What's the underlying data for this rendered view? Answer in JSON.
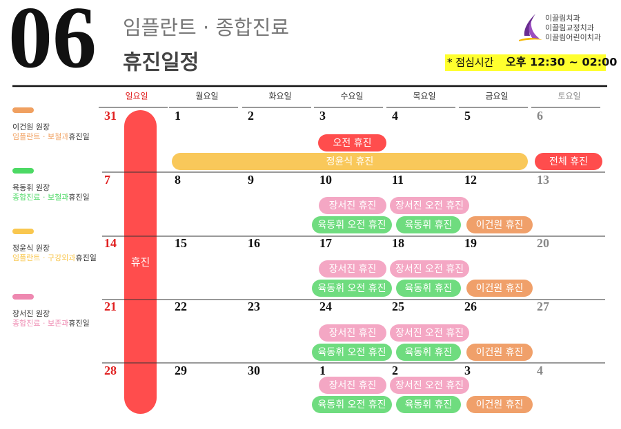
{
  "header": {
    "month": "06",
    "title": "임플란트 · 종합진료",
    "subtitle": "휴진일정",
    "clinics": [
      "이끌림치과",
      "이끌림교정치과",
      "이끌림어린이치과"
    ],
    "lunch_label": "* 점심시간",
    "lunch_time": "오후 12:30 ~ 02:00"
  },
  "legend": [
    {
      "name": "이건원 원장",
      "dept": "임플란트 · 보철과",
      "suffix": "휴진일"
    },
    {
      "name": "육동휘 원장",
      "dept": "종합진료 · 보철과",
      "suffix": "휴진일"
    },
    {
      "name": "정윤식 원장",
      "dept": "임플란트 · 구강외과",
      "suffix": "휴진일"
    },
    {
      "name": "장서진 원장",
      "dept": "종합진료 · 보존과",
      "suffix": "휴진일"
    }
  ],
  "weekdays": [
    "일요일",
    "월요일",
    "화요일",
    "수요일",
    "목요일",
    "금요일",
    "토요일"
  ],
  "sunday_closure": "휴진",
  "weeks": [
    {
      "dates": [
        31,
        1,
        2,
        3,
        4,
        5,
        6
      ],
      "events": [
        "오전 휴진",
        "정윤식 휴진",
        "전체 휴진"
      ]
    },
    {
      "dates": [
        7,
        8,
        9,
        10,
        11,
        12,
        13
      ],
      "events": [
        "장서진 휴진",
        "장서진 오전 휴진",
        "육동휘 오전 휴진",
        "육동휘 휴진",
        "이건원 휴진"
      ]
    },
    {
      "dates": [
        14,
        15,
        16,
        17,
        18,
        19,
        20
      ],
      "events": [
        "장서진 휴진",
        "장서진 오전 휴진",
        "육동휘 오전 휴진",
        "육동휘 휴진",
        "이건원 휴진"
      ]
    },
    {
      "dates": [
        21,
        22,
        23,
        24,
        25,
        26,
        27
      ],
      "events": [
        "장서진 휴진",
        "장서진 오전 휴진",
        "육동휘 오전 휴진",
        "육동휘 휴진",
        "이건원 휴진"
      ]
    },
    {
      "dates": [
        28,
        29,
        30,
        1,
        2,
        3,
        4
      ],
      "events": [
        "장서진 휴진",
        "장서진 오전 휴진",
        "육동휘 오전 휴진",
        "육동휘 휴진",
        "이건원 휴진"
      ]
    }
  ]
}
